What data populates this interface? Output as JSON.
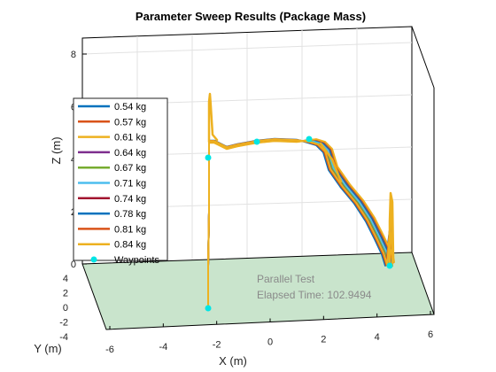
{
  "chart_data": {
    "type": "line",
    "title": "Parameter Sweep Results (Package Mass)",
    "xlabel": "X (m)",
    "ylabel": "Y (m)",
    "zlabel": "Z (m)",
    "xlim": [
      -6,
      6
    ],
    "ylim": [
      -4,
      4
    ],
    "zlim": [
      0,
      8
    ],
    "x_ticks": [
      "-6",
      "-4",
      "-2",
      "0",
      "2",
      "4",
      "6"
    ],
    "y_ticks": [
      "-4",
      "-2",
      "0",
      "2",
      "4"
    ],
    "z_ticks": [
      "0",
      "2",
      "4",
      "6",
      "8"
    ],
    "grid": true,
    "legend_position": "left",
    "series": [
      {
        "name": "0.54 kg",
        "color": "#0072BD"
      },
      {
        "name": "0.57 kg",
        "color": "#D95319"
      },
      {
        "name": "0.61 kg",
        "color": "#EDB120"
      },
      {
        "name": "0.64 kg",
        "color": "#7E2F8E"
      },
      {
        "name": "0.67 kg",
        "color": "#77AC30"
      },
      {
        "name": "0.71 kg",
        "color": "#4DBEEE"
      },
      {
        "name": "0.74 kg",
        "color": "#A2142F"
      },
      {
        "name": "0.78 kg",
        "color": "#0072BD"
      },
      {
        "name": "0.81 kg",
        "color": "#D95319"
      },
      {
        "name": "0.84 kg",
        "color": "#EDB120"
      }
    ],
    "waypoints": {
      "name": "Waypoints",
      "color": "#00E5E5"
    },
    "annotations": [
      "Parallel Test",
      "Elapsed Time: 102.9494"
    ]
  }
}
